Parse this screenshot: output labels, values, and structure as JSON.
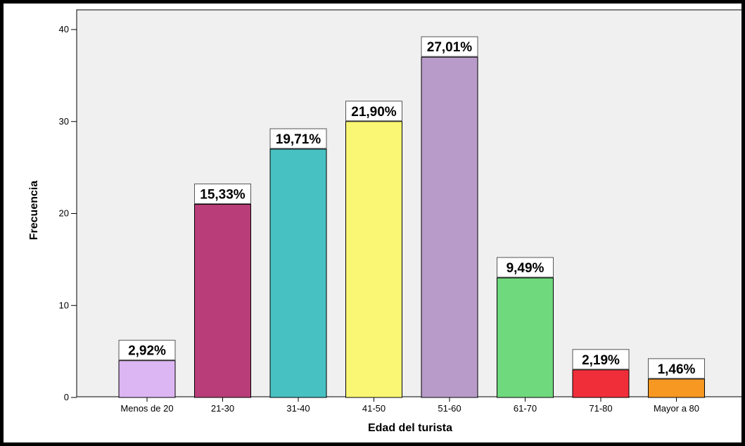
{
  "chart_data": {
    "type": "bar",
    "title": "",
    "xlabel": "Edad del turista",
    "ylabel": "Frecuencia",
    "ylim": [
      0,
      40
    ],
    "yticks": [
      0,
      10,
      20,
      30,
      40
    ],
    "grid": false,
    "legend": "none",
    "plot_background": "#f0f0f0",
    "categories": [
      "Menos de 20",
      "21-30",
      "31-40",
      "41-50",
      "51-60",
      "61-70",
      "71-80",
      "Mayor a 80"
    ],
    "values": [
      4,
      21,
      27,
      30,
      37,
      13,
      3,
      2
    ],
    "data_labels": [
      "2,92%",
      "15,33%",
      "19,71%",
      "21,90%",
      "27,01%",
      "9,49%",
      "2,19%",
      "1,46%"
    ],
    "colors": [
      "#dcb6f2",
      "#b83d78",
      "#47c1c2",
      "#f9f774",
      "#b89bc9",
      "#6fd97e",
      "#f02e3a",
      "#f79822"
    ]
  }
}
